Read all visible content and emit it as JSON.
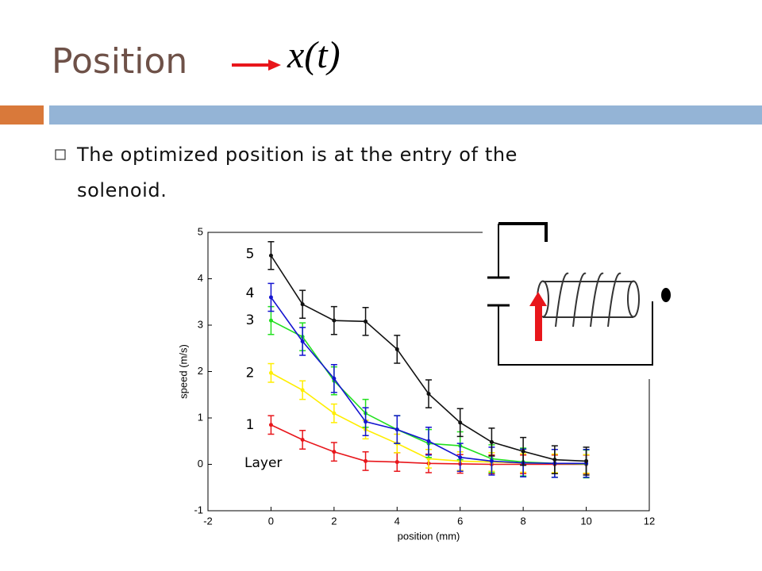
{
  "slide": {
    "title": "Position",
    "formula": "x(t)",
    "bullets": [
      "The optimized position is at the entry of the solenoid."
    ]
  },
  "chart_data": {
    "type": "line",
    "xlabel": "position (mm)",
    "ylabel": "speed (m/s)",
    "x": [
      0,
      1,
      2,
      3,
      4,
      5,
      6,
      7,
      8,
      9,
      10
    ],
    "xlim": [
      -2,
      12
    ],
    "xticks": [
      -2,
      0,
      2,
      4,
      6,
      8,
      10,
      12
    ],
    "ylim": [
      -1,
      5
    ],
    "yticks": [
      -1,
      0,
      1,
      2,
      3,
      4,
      5
    ],
    "annotation": "Layer",
    "series": [
      {
        "name": "1",
        "color": "#e8161b",
        "values": [
          0.85,
          0.53,
          0.27,
          0.07,
          0.05,
          0.02,
          0.01,
          0,
          0,
          0,
          0
        ],
        "errors": [
          0.2,
          0.2,
          0.2,
          0.2,
          0.2,
          0.2,
          0.2,
          0.2,
          0.2,
          0.2,
          0.2
        ]
      },
      {
        "name": "2",
        "color": "#ffee00",
        "values": [
          1.97,
          1.6,
          1.1,
          0.75,
          0.45,
          0.12,
          0.07,
          0.05,
          0.03,
          0.02,
          0.01
        ],
        "errors": [
          0.2,
          0.2,
          0.2,
          0.2,
          0.2,
          0.2,
          0.2,
          0.2,
          0.2,
          0.2,
          0.2
        ]
      },
      {
        "name": "3",
        "color": "#22e01f",
        "values": [
          3.1,
          2.75,
          1.8,
          1.1,
          0.75,
          0.45,
          0.4,
          0.12,
          0.05,
          0.02,
          0.01
        ],
        "errors": [
          0.3,
          0.3,
          0.3,
          0.3,
          0.3,
          0.3,
          0.3,
          0.3,
          0.3,
          0.3,
          0.3
        ]
      },
      {
        "name": "4",
        "color": "#1414d0",
        "values": [
          3.6,
          2.65,
          1.85,
          0.92,
          0.75,
          0.5,
          0.15,
          0.07,
          0.03,
          0.02,
          0.02
        ],
        "errors": [
          0.3,
          0.3,
          0.3,
          0.3,
          0.3,
          0.3,
          0.3,
          0.3,
          0.3,
          0.3,
          0.3
        ]
      },
      {
        "name": "5",
        "color": "#111111",
        "values": [
          4.5,
          3.45,
          3.1,
          3.08,
          2.48,
          1.52,
          0.9,
          0.48,
          0.28,
          0.1,
          0.07
        ],
        "errors": [
          0.3,
          0.3,
          0.3,
          0.3,
          0.3,
          0.3,
          0.3,
          0.3,
          0.3,
          0.3,
          0.3
        ]
      }
    ]
  }
}
